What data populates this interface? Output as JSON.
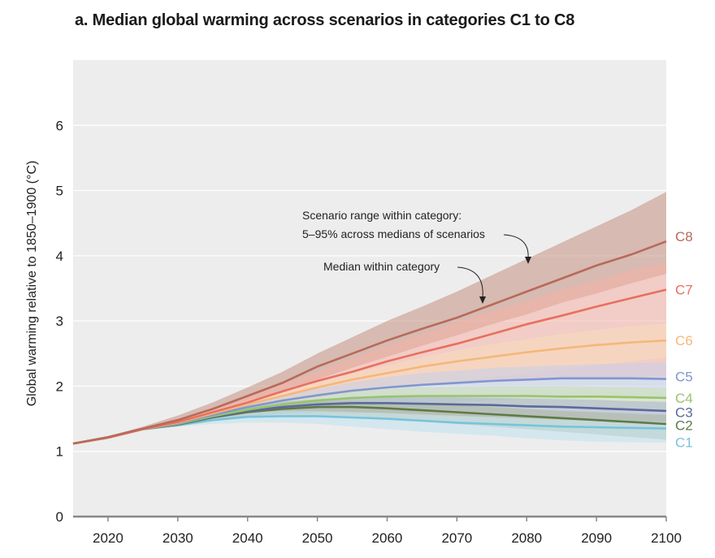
{
  "chart_data": {
    "type": "area",
    "title": "a. Median global warming across scenarios in categories C1 to C8",
    "xlabel": "",
    "ylabel": "Global warming relative to 1850–1900 (°C)",
    "xlim": [
      2015,
      2100
    ],
    "ylim": [
      0,
      7
    ],
    "x_ticks": [
      2020,
      2030,
      2040,
      2050,
      2060,
      2070,
      2080,
      2090,
      2100
    ],
    "y_ticks": [
      0,
      1,
      2,
      3,
      4,
      5,
      6
    ],
    "grid": true,
    "x": [
      2015,
      2020,
      2025,
      2030,
      2035,
      2040,
      2045,
      2050,
      2055,
      2060,
      2065,
      2070,
      2075,
      2080,
      2085,
      2090,
      2095,
      2100
    ],
    "annotations": [
      {
        "text_line1": "Scenario range within category:",
        "text_line2": "5–95% across medians of scenarios"
      },
      {
        "text": "Median within category"
      }
    ],
    "series": [
      {
        "name": "C8",
        "color": "#b86a5a",
        "band_color": "#c4907f",
        "median": [
          1.12,
          1.22,
          1.35,
          1.48,
          1.65,
          1.85,
          2.05,
          2.3,
          2.5,
          2.7,
          2.88,
          3.05,
          3.25,
          3.45,
          3.65,
          3.85,
          4.02,
          4.22
        ],
        "low": [
          1.12,
          1.22,
          1.35,
          1.45,
          1.6,
          1.75,
          1.92,
          2.1,
          2.28,
          2.45,
          2.62,
          2.78,
          2.95,
          3.1,
          3.28,
          3.42,
          3.58,
          3.72
        ],
        "high": [
          1.12,
          1.23,
          1.38,
          1.55,
          1.75,
          1.98,
          2.22,
          2.5,
          2.75,
          3.0,
          3.22,
          3.45,
          3.7,
          3.95,
          4.2,
          4.45,
          4.7,
          4.98
        ]
      },
      {
        "name": "C7",
        "color": "#e8705f",
        "band_color": "#f6b1a6",
        "median": [
          1.12,
          1.21,
          1.34,
          1.45,
          1.6,
          1.75,
          1.92,
          2.08,
          2.22,
          2.38,
          2.52,
          2.65,
          2.8,
          2.95,
          3.08,
          3.22,
          3.35,
          3.48
        ],
        "low": [
          1.12,
          1.21,
          1.33,
          1.42,
          1.55,
          1.66,
          1.76,
          1.85,
          1.92,
          1.98,
          2.02,
          2.06,
          2.08,
          2.1,
          2.11,
          2.12,
          2.13,
          2.14
        ],
        "high": [
          1.12,
          1.22,
          1.36,
          1.5,
          1.66,
          1.84,
          2.04,
          2.22,
          2.42,
          2.62,
          2.8,
          2.98,
          3.15,
          3.3,
          3.48,
          3.62,
          3.78,
          3.9
        ]
      },
      {
        "name": "C6",
        "color": "#f5b77a",
        "band_color": "#f9dcbb",
        "median": [
          1.12,
          1.21,
          1.34,
          1.44,
          1.58,
          1.72,
          1.85,
          1.98,
          2.1,
          2.2,
          2.3,
          2.38,
          2.45,
          2.52,
          2.58,
          2.63,
          2.67,
          2.7
        ],
        "low": [
          1.12,
          1.21,
          1.33,
          1.42,
          1.54,
          1.65,
          1.74,
          1.82,
          1.9,
          1.96,
          2.02,
          2.08,
          2.14,
          2.2,
          2.26,
          2.32,
          2.38,
          2.44
        ],
        "high": [
          1.12,
          1.22,
          1.35,
          1.47,
          1.62,
          1.78,
          1.92,
          2.06,
          2.2,
          2.32,
          2.44,
          2.55,
          2.64,
          2.72,
          2.8,
          2.86,
          2.92,
          2.96
        ]
      },
      {
        "name": "C5",
        "color": "#7f97cf",
        "band_color": "#c4cfe9",
        "median": [
          1.12,
          1.21,
          1.34,
          1.43,
          1.56,
          1.68,
          1.78,
          1.86,
          1.93,
          1.98,
          2.02,
          2.05,
          2.08,
          2.1,
          2.12,
          2.12,
          2.12,
          2.11
        ],
        "low": [
          1.12,
          1.21,
          1.33,
          1.41,
          1.5,
          1.58,
          1.64,
          1.68,
          1.7,
          1.72,
          1.74,
          1.76,
          1.78,
          1.8,
          1.81,
          1.82,
          1.82,
          1.82
        ],
        "high": [
          1.12,
          1.22,
          1.35,
          1.46,
          1.6,
          1.74,
          1.86,
          1.96,
          2.06,
          2.14,
          2.2,
          2.24,
          2.28,
          2.3,
          2.32,
          2.34,
          2.35,
          2.36
        ]
      },
      {
        "name": "C4",
        "color": "#98c46b",
        "band_color": "#cce0b4",
        "median": [
          1.12,
          1.21,
          1.34,
          1.42,
          1.54,
          1.64,
          1.72,
          1.78,
          1.82,
          1.84,
          1.85,
          1.85,
          1.85,
          1.85,
          1.84,
          1.84,
          1.83,
          1.82
        ],
        "low": [
          1.12,
          1.21,
          1.33,
          1.41,
          1.5,
          1.57,
          1.62,
          1.65,
          1.67,
          1.68,
          1.68,
          1.68,
          1.68,
          1.67,
          1.66,
          1.66,
          1.65,
          1.64
        ],
        "high": [
          1.12,
          1.22,
          1.35,
          1.45,
          1.58,
          1.7,
          1.8,
          1.88,
          1.93,
          1.96,
          1.98,
          1.99,
          2.0,
          2.0,
          2.0,
          1.99,
          1.98,
          1.97
        ]
      },
      {
        "name": "C3",
        "color": "#5a6a9c",
        "band_color": "#a9b1cc",
        "median": [
          1.12,
          1.21,
          1.34,
          1.42,
          1.53,
          1.62,
          1.68,
          1.72,
          1.74,
          1.74,
          1.73,
          1.72,
          1.71,
          1.69,
          1.68,
          1.66,
          1.64,
          1.62
        ],
        "low": [
          1.12,
          1.21,
          1.33,
          1.4,
          1.48,
          1.54,
          1.58,
          1.6,
          1.6,
          1.59,
          1.57,
          1.55,
          1.53,
          1.51,
          1.49,
          1.47,
          1.45,
          1.43
        ],
        "high": [
          1.12,
          1.22,
          1.35,
          1.45,
          1.57,
          1.68,
          1.76,
          1.8,
          1.83,
          1.84,
          1.84,
          1.83,
          1.82,
          1.81,
          1.8,
          1.79,
          1.77,
          1.76
        ]
      },
      {
        "name": "C2",
        "color": "#5e7a48",
        "band_color": "#a9b79b",
        "median": [
          1.12,
          1.21,
          1.34,
          1.41,
          1.52,
          1.6,
          1.65,
          1.68,
          1.68,
          1.66,
          1.63,
          1.6,
          1.57,
          1.54,
          1.51,
          1.48,
          1.45,
          1.42
        ],
        "low": [
          1.12,
          1.21,
          1.33,
          1.39,
          1.46,
          1.52,
          1.55,
          1.55,
          1.53,
          1.5,
          1.46,
          1.42,
          1.38,
          1.34,
          1.3,
          1.26,
          1.22,
          1.18
        ],
        "high": [
          1.12,
          1.22,
          1.35,
          1.44,
          1.57,
          1.67,
          1.73,
          1.76,
          1.77,
          1.76,
          1.74,
          1.71,
          1.68,
          1.65,
          1.62,
          1.6,
          1.58,
          1.56
        ]
      },
      {
        "name": "C1",
        "color": "#78c3dc",
        "band_color": "#bfe2ee",
        "median": [
          1.12,
          1.21,
          1.34,
          1.4,
          1.48,
          1.53,
          1.54,
          1.54,
          1.52,
          1.5,
          1.47,
          1.44,
          1.42,
          1.4,
          1.38,
          1.37,
          1.36,
          1.35
        ],
        "low": [
          1.12,
          1.21,
          1.33,
          1.38,
          1.42,
          1.44,
          1.44,
          1.42,
          1.38,
          1.34,
          1.3,
          1.27,
          1.24,
          1.2,
          1.17,
          1.15,
          1.14,
          1.13
        ],
        "high": [
          1.12,
          1.22,
          1.35,
          1.43,
          1.53,
          1.6,
          1.62,
          1.62,
          1.6,
          1.58,
          1.56,
          1.54,
          1.52,
          1.5,
          1.48,
          1.47,
          1.46,
          1.45
        ]
      }
    ]
  }
}
